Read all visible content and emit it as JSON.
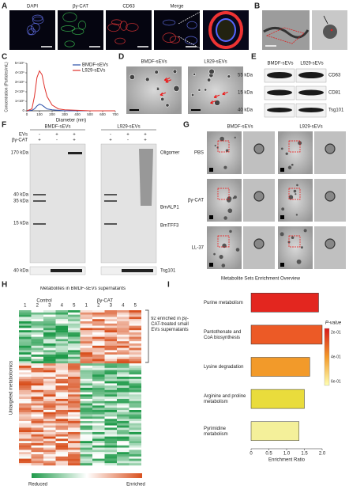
{
  "panel_labels": [
    "A",
    "B",
    "C",
    "D",
    "E",
    "F",
    "G",
    "H",
    "I"
  ],
  "panel_a": {
    "channels": [
      "DAPI",
      "βγ-CAT",
      "CD63",
      "Merge"
    ]
  },
  "panel_d": {
    "groups": [
      "BMDF-sEVs",
      "L929-sEVs"
    ]
  },
  "panel_e": {
    "groups": [
      "BMDF-sEVs",
      "L929-sEVs"
    ],
    "markers": [
      "55 kDa",
      "15 kDa",
      "40 kDa"
    ],
    "proteins": [
      "CD63",
      "CD81",
      "Tsg101"
    ]
  },
  "panel_f": {
    "groups": [
      "BMDF-sEVs",
      "L929-sEVs"
    ],
    "rows": [
      "EVs",
      "βγ-CAT"
    ],
    "signs": [
      [
        "-",
        "+",
        "+"
      ],
      [
        "+",
        "-",
        "+"
      ]
    ],
    "markers": [
      "170 kDa",
      "40 kDa",
      "35 kDa",
      "15 kDa",
      "40 kDa"
    ],
    "bands": [
      "Oligomer",
      "BmALP1",
      "BmTFF3",
      "Tsg101"
    ]
  },
  "panel_g": {
    "groups": [
      "BMDF-sEVs",
      "L929-sEVs"
    ],
    "rows": [
      "PBS",
      "βγ-CAT",
      "LL-37"
    ]
  },
  "panel_h": {
    "title": "Metabolites in BMDF-sEVs supernatants",
    "groups": [
      "Control",
      "βγ-CAT"
    ],
    "columns": [
      "1",
      "2",
      "3",
      "4",
      "5"
    ],
    "note": "92 enriched in βγ-CAT-treated small EVs supernatants",
    "ylabel": "Untargeted metabolomics",
    "scale": [
      "Reduced",
      "Enriched"
    ]
  },
  "chart_data": [
    {
      "type": "line",
      "xlabel": "Diameter (nm)",
      "ylabel": "Concentration (Particles/mL)",
      "x": [
        0,
        40,
        60,
        80,
        100,
        120,
        140,
        160,
        200,
        250,
        300,
        400,
        500,
        600,
        700
      ],
      "series": [
        {
          "name": "BMDF-sEVs",
          "color": "#2b4fa8",
          "values": [
            0,
            50000000,
            200000000,
            500000000,
            700000000,
            600000000,
            400000000,
            200000000,
            100000000,
            50000000,
            0,
            0,
            0,
            0,
            0
          ]
        },
        {
          "name": "L929-sEVs",
          "color": "#e0302a",
          "values": [
            0,
            200000000,
            1500000000,
            3500000000,
            4200000000,
            3800000000,
            2500000000,
            1500000000,
            600000000,
            200000000,
            100000000,
            50000000,
            0,
            0,
            0
          ]
        }
      ],
      "xlim": [
        0,
        700
      ],
      "xticks": [
        0,
        100,
        200,
        300,
        400,
        500,
        600,
        700
      ],
      "ylim": [
        0,
        5000000000
      ],
      "yticks": [
        0,
        {
          "value": 1000000000,
          "label": "1×10⁹"
        },
        {
          "value": 2000000000,
          "label": "2×10⁹"
        },
        {
          "value": 3000000000,
          "label": "3×10⁹"
        },
        {
          "value": 4000000000,
          "label": "4×10⁹"
        },
        {
          "value": 5000000000,
          "label": "5×10⁹"
        }
      ],
      "legend": "upper right"
    },
    {
      "type": "hbar",
      "title": "Metabolite Sets Enrichment Overview",
      "xlabel": "Enrichment Ratio",
      "categories": [
        "Purine metabolism",
        "Pantothenate and CoA biosynthesis",
        "Lysine degradation",
        "Arginine and proline metabolism",
        "Pyrimidine metabolism"
      ],
      "values": [
        1.9,
        2.0,
        1.65,
        1.5,
        1.35
      ],
      "colors": [
        "#e3261f",
        "#ec5a26",
        "#f29a2a",
        "#e9dc3c",
        "#f4f09a"
      ],
      "xlim": [
        0,
        2.0
      ],
      "xticks": [
        0,
        0.5,
        {
          "value": 1,
          "label": "1.0"
        },
        1.5,
        {
          "value": 2,
          "label": "2.0"
        }
      ],
      "colorbar": {
        "title": "P-value",
        "ticks": [
          "2e-01",
          "4e-01",
          "6e-01"
        ]
      }
    }
  ]
}
